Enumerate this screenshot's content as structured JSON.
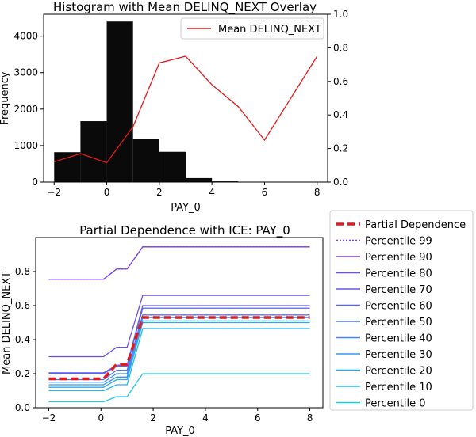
{
  "chart_data": [
    {
      "type": "bar",
      "title": "Histogram with Mean DELINQ_NEXT Overlay",
      "xlabel": "PAY_0",
      "ylabel": "Frequency",
      "xlim": [
        -2.4,
        8.4
      ],
      "ylim": [
        0,
        4600
      ],
      "y2lim": [
        0,
        1.0
      ],
      "xticks": [
        -2,
        0,
        2,
        4,
        6,
        8
      ],
      "yticks": [
        0,
        1000,
        2000,
        3000,
        4000
      ],
      "y2ticks": [
        0.0,
        0.2,
        0.4,
        0.6,
        0.8,
        1.0
      ],
      "bins": [
        {
          "x0": -2,
          "x1": -1,
          "count": 820
        },
        {
          "x0": -1,
          "x1": 0,
          "count": 1670
        },
        {
          "x0": 0,
          "x1": 1,
          "count": 4400
        },
        {
          "x0": 1,
          "x1": 2,
          "count": 1180
        },
        {
          "x0": 2,
          "x1": 3,
          "count": 830
        },
        {
          "x0": 3,
          "x1": 4,
          "count": 110
        },
        {
          "x0": 4,
          "x1": 5,
          "count": 20
        },
        {
          "x0": 5,
          "x1": 6,
          "count": 5
        }
      ],
      "series": [
        {
          "name": "Mean DELINQ_NEXT",
          "color": "#e31a1c",
          "x": [
            -2,
            -1,
            0,
            1,
            2,
            3,
            4,
            5,
            6,
            8
          ],
          "y": [
            0.12,
            0.17,
            0.115,
            0.33,
            0.71,
            0.75,
            0.58,
            0.45,
            0.25,
            0.75
          ]
        }
      ],
      "legend": "top-right"
    },
    {
      "type": "line",
      "title": "Partial Dependence with ICE: PAY_0",
      "xlabel": "PAY_0",
      "ylabel": "Mean DELINQ_NEXT",
      "xlim": [
        -2.5,
        8.5
      ],
      "ylim": [
        0.0,
        1.0
      ],
      "xticks": [
        -2,
        0,
        2,
        4,
        6,
        8
      ],
      "yticks": [
        0.0,
        0.2,
        0.4,
        0.6,
        0.8
      ],
      "x": [
        -2,
        0,
        0.1,
        0.6,
        1.0,
        1.6,
        2,
        8
      ],
      "series": [
        {
          "name": "Partial Dependence",
          "color": "#e31a1c",
          "dashed": true,
          "y": [
            0.17,
            0.17,
            0.17,
            0.255,
            0.255,
            0.53,
            0.53,
            0.53
          ]
        },
        {
          "name": "Percentile 99",
          "color": "#7b3fe6",
          "dotted": true,
          "y": [
            0.755,
            0.755,
            0.755,
            0.815,
            0.815,
            0.945,
            0.945,
            0.945
          ]
        },
        {
          "name": "Percentile 90",
          "color": "#7b3fe6",
          "y": [
            0.755,
            0.755,
            0.755,
            0.815,
            0.815,
            0.945,
            0.945,
            0.945
          ]
        },
        {
          "name": "Percentile 80",
          "color": "#6e4ee8",
          "y": [
            0.3,
            0.3,
            0.3,
            0.355,
            0.355,
            0.66,
            0.66,
            0.66
          ]
        },
        {
          "name": "Percentile 70",
          "color": "#6159ea",
          "y": [
            0.205,
            0.205,
            0.205,
            0.25,
            0.25,
            0.6,
            0.6,
            0.6
          ]
        },
        {
          "name": "Percentile 60",
          "color": "#5966ec",
          "y": [
            0.2,
            0.2,
            0.2,
            0.245,
            0.245,
            0.585,
            0.585,
            0.585
          ]
        },
        {
          "name": "Percentile 50",
          "color": "#4d77ee",
          "y": [
            0.165,
            0.165,
            0.165,
            0.22,
            0.22,
            0.545,
            0.545,
            0.545
          ]
        },
        {
          "name": "Percentile 40",
          "color": "#4087ef",
          "y": [
            0.15,
            0.15,
            0.15,
            0.2,
            0.2,
            0.53,
            0.53,
            0.53
          ]
        },
        {
          "name": "Percentile 30",
          "color": "#3598f0",
          "y": [
            0.135,
            0.135,
            0.135,
            0.18,
            0.18,
            0.51,
            0.51,
            0.51
          ]
        },
        {
          "name": "Percentile 20",
          "color": "#2aa9f2",
          "y": [
            0.12,
            0.12,
            0.12,
            0.165,
            0.165,
            0.5,
            0.5,
            0.5
          ]
        },
        {
          "name": "Percentile 10",
          "color": "#22b8f3",
          "y": [
            0.1,
            0.1,
            0.1,
            0.135,
            0.135,
            0.465,
            0.465,
            0.465
          ]
        },
        {
          "name": "Percentile 0",
          "color": "#1ec9f4",
          "y": [
            0.035,
            0.035,
            0.035,
            0.065,
            0.065,
            0.2,
            0.2,
            0.2
          ]
        }
      ],
      "legend": "outside-right"
    }
  ]
}
